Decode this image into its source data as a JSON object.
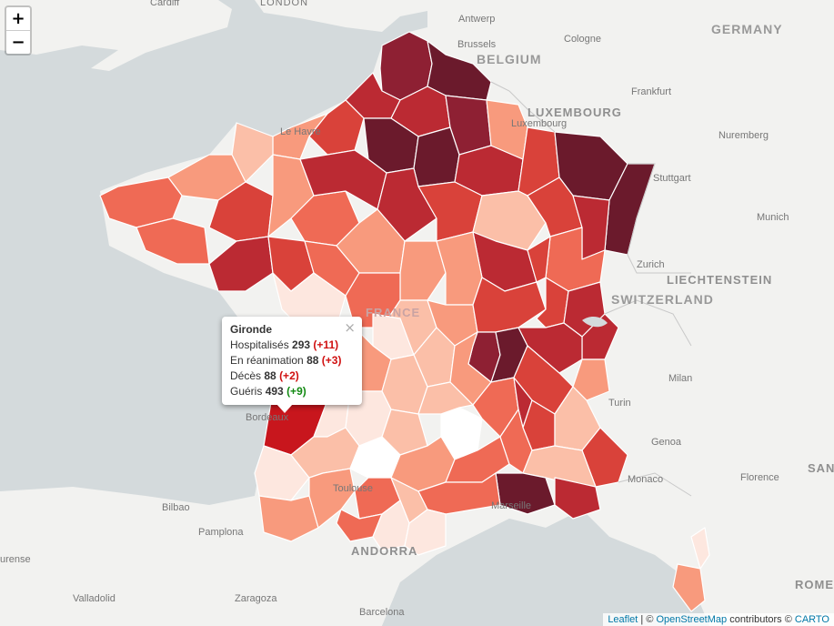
{
  "zoom": {
    "in_label": "+",
    "out_label": "−"
  },
  "places": {
    "countries": [
      "BELGIUM",
      "LUXEMBOURG",
      "GERMANY",
      "SWITZERLAND",
      "LIECHTENSTEIN",
      "FRANCE",
      "ANDORRA"
    ],
    "cities": [
      "Cardiff",
      "LONDON",
      "Antwerp",
      "Brussels",
      "Cologne",
      "Frankfurt",
      "Nuremberg",
      "Stuttgart",
      "Munich",
      "Zurich",
      "Le Havre",
      "Luxembourg",
      "Milan",
      "Turin",
      "Genoa",
      "Monaco",
      "Florence",
      "Bilbao",
      "Pamplona",
      "Zaragoza",
      "Valladolid",
      "Barcelona",
      "Marseille",
      "Toulouse",
      "Bordeaux",
      "ROME",
      "SAN",
      "urense"
    ]
  },
  "colors": {
    "c1": "#fde7df",
    "c2": "#fbbfa8",
    "c3": "#f89a7d",
    "c4": "#ef6a55",
    "c5": "#d9423a",
    "c6": "#bb2a33",
    "c7": "#8e2033",
    "c8": "#6b1a2c",
    "selected": "#c8161d"
  },
  "popup": {
    "title": "Gironde",
    "close": "×",
    "rows": [
      {
        "label": "Hospitalisés",
        "value": "293",
        "delta": "(+11)",
        "tone": "red"
      },
      {
        "label": "En réanimation",
        "value": "88",
        "delta": "(+3)",
        "tone": "red"
      },
      {
        "label": "Décès",
        "value": "88",
        "delta": "(+2)",
        "tone": "red"
      },
      {
        "label": "Guéris",
        "value": "493",
        "delta": "(+9)",
        "tone": "green"
      }
    ]
  },
  "attribution": {
    "leaflet": "Leaflet",
    "sep": " | © ",
    "osm": "OpenStreetMap",
    "contrib": " contributors © ",
    "carto": "CARTO"
  }
}
